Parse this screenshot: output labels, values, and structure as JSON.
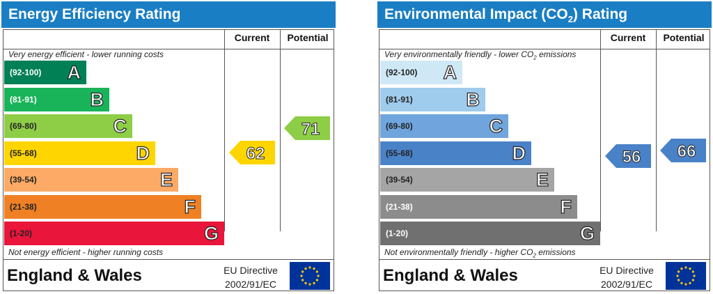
{
  "chart_data": [
    {
      "type": "bar",
      "title": "Energy Efficiency Rating",
      "columns": [
        "Current",
        "Potential"
      ],
      "top_note": "Very energy efficient - lower running costs",
      "bottom_note": "Not energy efficient - higher running costs",
      "bands": [
        {
          "range": "(92-100)",
          "letter": "A",
          "color": "#008054",
          "text_color": "#ffffff"
        },
        {
          "range": "(81-91)",
          "letter": "B",
          "color": "#19b459",
          "text_color": "#ffffff"
        },
        {
          "range": "(69-80)",
          "letter": "C",
          "color": "#8dce46",
          "text_color": "#222222"
        },
        {
          "range": "(55-68)",
          "letter": "D",
          "color": "#ffd500",
          "text_color": "#222222"
        },
        {
          "range": "(39-54)",
          "letter": "E",
          "color": "#fcaa65",
          "text_color": "#222222"
        },
        {
          "range": "(21-38)",
          "letter": "F",
          "color": "#ef8023",
          "text_color": "#222222"
        },
        {
          "range": "(1-20)",
          "letter": "G",
          "color": "#e9153b",
          "text_color": "#222222"
        }
      ],
      "current": {
        "value": 62,
        "band": "D",
        "color": "#ffd500"
      },
      "potential": {
        "value": 71,
        "band": "C",
        "color": "#8dce46"
      },
      "footer": {
        "region": "England & Wales",
        "directive_line1": "EU Directive",
        "directive_line2": "2002/91/EC"
      }
    },
    {
      "type": "bar",
      "title_parts": [
        "Environmental Impact (CO",
        "2",
        ") Rating"
      ],
      "columns": [
        "Current",
        "Potential"
      ],
      "top_note_parts": [
        "Very environmentally friendly - lower CO",
        "2",
        " emissions"
      ],
      "bottom_note_parts": [
        "Not environmentally friendly - higher CO",
        "2",
        " emissions"
      ],
      "bands": [
        {
          "range": "(92-100)",
          "letter": "A",
          "color": "#cfe8f6",
          "text_color": "#222222"
        },
        {
          "range": "(81-91)",
          "letter": "B",
          "color": "#9fcbec",
          "text_color": "#222222"
        },
        {
          "range": "(69-80)",
          "letter": "C",
          "color": "#6fa5dc",
          "text_color": "#222222"
        },
        {
          "range": "(55-68)",
          "letter": "D",
          "color": "#4a82c8",
          "text_color": "#222222"
        },
        {
          "range": "(39-54)",
          "letter": "E",
          "color": "#a5a5a5",
          "text_color": "#222222"
        },
        {
          "range": "(21-38)",
          "letter": "F",
          "color": "#8c8c8c",
          "text_color": "#ffffff"
        },
        {
          "range": "(1-20)",
          "letter": "G",
          "color": "#707070",
          "text_color": "#ffffff"
        }
      ],
      "current": {
        "value": 56,
        "band": "D",
        "color": "#4a82c8"
      },
      "potential": {
        "value": 66,
        "band": "D",
        "color": "#4a82c8"
      },
      "footer": {
        "region": "England & Wales",
        "directive_line1": "EU Directive",
        "directive_line2": "2002/91/EC"
      }
    }
  ]
}
